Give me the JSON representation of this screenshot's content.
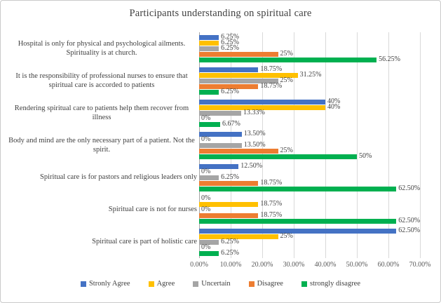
{
  "title": "Participants understanding on spiritual care",
  "chart_data": {
    "type": "bar",
    "orientation": "horizontal",
    "title": "Participants understanding on spiritual care",
    "xlabel": "",
    "ylabel": "",
    "axis_max": 70,
    "grid": true,
    "legend_position": "bottom",
    "x_ticks": [
      "0.00%",
      "10.00%",
      "20.00%",
      "30.00%",
      "40.00%",
      "50.00%",
      "60.00%",
      "70.00%"
    ],
    "categories": [
      "Hospital is only for physical and psychological ailments. Spirituality is at church.",
      "It is the responsibility  of professional nurses to ensure that spiritual care is accorded to patients",
      "Rendering spiritual care to patients help them recover from illness",
      "Body and mind are the only necessary part of a patient. Not the spirit.",
      "Spiritual care is for pastors and religious leaders only",
      "Spiritual care is not for nurses",
      "Spiritual care is part of holistic care"
    ],
    "series": [
      {
        "name": "Stronly Agree",
        "color": "#4472C4",
        "values": [
          6.25,
          18.75,
          40,
          13.5,
          12.5,
          0,
          62.5
        ],
        "labels": [
          "6.25%",
          "18.75%",
          "40%",
          "13.50%",
          "12.50%",
          "0%",
          "62.50%"
        ]
      },
      {
        "name": "Agree",
        "color": "#FFC000",
        "values": [
          6.25,
          31.25,
          40,
          0,
          0,
          18.75,
          25
        ],
        "labels": [
          "6.25%",
          "31.25%",
          "40%",
          "0%",
          "0%",
          "18.75%",
          "25%"
        ]
      },
      {
        "name": "Uncertain",
        "color": "#A5A5A5",
        "values": [
          6.25,
          25,
          13.33,
          13.5,
          6.25,
          0,
          6.25
        ],
        "labels": [
          "6.25%",
          "25%",
          "13.33%",
          "13.50%",
          "6.25%",
          "0%",
          "6.25%"
        ]
      },
      {
        "name": "Disagree",
        "color": "#ED7D31",
        "values": [
          25,
          18.75,
          0,
          25,
          18.75,
          18.75,
          0
        ],
        "labels": [
          "25%",
          "18.75%",
          "0%",
          "25%",
          "18.75%",
          "18.75%",
          "0%"
        ]
      },
      {
        "name": "strongly disagree",
        "color": "#00B050",
        "values": [
          56.25,
          6.25,
          6.67,
          50,
          62.5,
          62.5,
          6.25
        ],
        "labels": [
          "56.25%",
          "6.25%",
          "6.67%",
          "50%",
          "62.50%",
          "62.50%",
          "6.25%"
        ]
      }
    ]
  }
}
